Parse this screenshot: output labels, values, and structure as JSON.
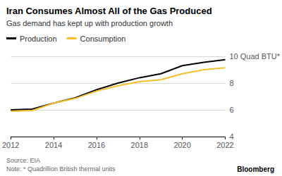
{
  "chart_data": {
    "type": "line",
    "title": "Iran Consumes Almost All of the Gas Produced",
    "subtitle": "Gas demand has kept up with production growth",
    "source": "Source: EIA",
    "note": "Note: * Quadrillion British thermal units",
    "credit": "Bloomberg",
    "x": [
      2012,
      2013,
      2014,
      2015,
      2016,
      2017,
      2018,
      2019,
      2020,
      2021,
      2022
    ],
    "series": [
      {
        "name": "Production",
        "color": "#000000",
        "values": [
          6.0,
          6.05,
          6.5,
          6.9,
          7.5,
          8.0,
          8.4,
          8.7,
          9.3,
          9.55,
          9.75
        ]
      },
      {
        "name": "Consumption",
        "color": "#f5c02c",
        "values": [
          5.9,
          5.95,
          6.5,
          6.85,
          7.4,
          7.8,
          8.1,
          8.25,
          8.7,
          9.0,
          9.15
        ]
      }
    ],
    "xlim": [
      2012,
      2022
    ],
    "xticks": [
      2012,
      2014,
      2016,
      2018,
      2020,
      2022
    ],
    "ylim": [
      4,
      10
    ],
    "yticks": [
      4,
      6,
      8,
      {
        "value": 10,
        "label": "10 Quad BTU*"
      }
    ],
    "grid": true,
    "legend": "top-left"
  }
}
